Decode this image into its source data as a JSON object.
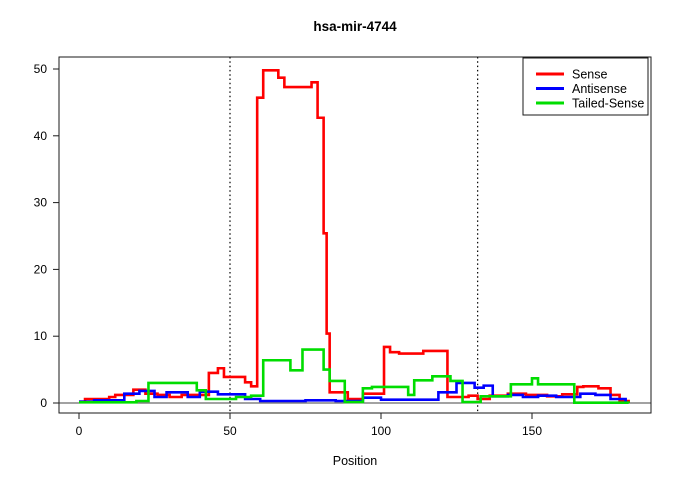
{
  "title": "hsa-mir-4744",
  "chart_data": {
    "type": "line",
    "step": true,
    "title": "hsa-mir-4744",
    "xlabel": "Position",
    "ylabel": "",
    "xlim": [
      -6.6,
      189.4
    ],
    "ylim": [
      -1.5,
      51.8
    ],
    "x_ticks": [
      0,
      50,
      100,
      150
    ],
    "y_ticks": [
      0,
      10,
      20,
      30,
      40,
      50
    ],
    "grid": false,
    "legend_position": "top-right",
    "zero_line": {
      "y": 0,
      "color": "#444444"
    },
    "vlines": {
      "x": [
        50,
        132
      ],
      "style": "dotted",
      "color": "#000000"
    },
    "series": [
      {
        "name": "Sense",
        "color": "#FF0000",
        "points": [
          [
            0,
            0.2
          ],
          [
            2,
            0.6
          ],
          [
            10,
            0.9
          ],
          [
            12,
            1.2
          ],
          [
            18,
            2.0
          ],
          [
            22,
            1.4
          ],
          [
            26,
            1.2
          ],
          [
            30,
            0.9
          ],
          [
            34,
            1.2
          ],
          [
            43,
            4.5
          ],
          [
            46,
            5.2
          ],
          [
            48,
            3.9
          ],
          [
            52,
            3.9
          ],
          [
            55,
            3.1
          ],
          [
            57,
            2.5
          ],
          [
            59,
            45.7
          ],
          [
            61,
            49.8
          ],
          [
            66,
            48.7
          ],
          [
            68,
            47.3
          ],
          [
            77,
            48.0
          ],
          [
            79,
            42.7
          ],
          [
            81,
            25.4
          ],
          [
            82,
            10.4
          ],
          [
            83,
            1.6
          ],
          [
            89,
            0.6
          ],
          [
            94,
            1.4
          ],
          [
            101,
            8.4
          ],
          [
            103,
            7.6
          ],
          [
            106,
            7.4
          ],
          [
            114,
            7.8
          ],
          [
            122,
            0.9
          ],
          [
            129,
            1.1
          ],
          [
            132,
            0.6
          ],
          [
            136,
            1.1
          ],
          [
            142,
            1.4
          ],
          [
            148,
            1.2
          ],
          [
            155,
            1.0
          ],
          [
            160,
            1.3
          ],
          [
            165,
            2.4
          ],
          [
            167,
            2.5
          ],
          [
            172,
            2.2
          ],
          [
            176,
            1.2
          ],
          [
            179,
            0.3
          ],
          [
            182,
            0
          ]
        ]
      },
      {
        "name": "Antisense",
        "color": "#0000FF",
        "points": [
          [
            0,
            0.2
          ],
          [
            5,
            0.4
          ],
          [
            15,
            1.4
          ],
          [
            20,
            1.8
          ],
          [
            25,
            0.9
          ],
          [
            29,
            1.6
          ],
          [
            36,
            0.9
          ],
          [
            40,
            1.7
          ],
          [
            46,
            1.3
          ],
          [
            55,
            0.6
          ],
          [
            60,
            0.3
          ],
          [
            75,
            0.4
          ],
          [
            85,
            0.3
          ],
          [
            94,
            0.8
          ],
          [
            100,
            0.5
          ],
          [
            119,
            1.6
          ],
          [
            125,
            3.0
          ],
          [
            131,
            2.3
          ],
          [
            134,
            2.6
          ],
          [
            137,
            1.0
          ],
          [
            142,
            1.2
          ],
          [
            147,
            0.9
          ],
          [
            152,
            1.1
          ],
          [
            158,
            0.9
          ],
          [
            166,
            1.4
          ],
          [
            171,
            1.2
          ],
          [
            176,
            0.6
          ],
          [
            181,
            0
          ]
        ]
      },
      {
        "name": "Tailed-Sense",
        "color": "#00DD00",
        "points": [
          [
            0,
            0.1
          ],
          [
            19,
            0.3
          ],
          [
            23,
            3.0
          ],
          [
            39,
            1.9
          ],
          [
            42,
            0.6
          ],
          [
            52,
            0.9
          ],
          [
            57,
            1.1
          ],
          [
            61,
            6.4
          ],
          [
            70,
            4.9
          ],
          [
            74,
            8.0
          ],
          [
            81,
            5.0
          ],
          [
            83,
            3.3
          ],
          [
            88,
            0.15
          ],
          [
            94,
            2.2
          ],
          [
            97,
            2.4
          ],
          [
            109,
            1.2
          ],
          [
            111,
            3.4
          ],
          [
            117,
            4.0
          ],
          [
            123,
            3.3
          ],
          [
            127,
            0.15
          ],
          [
            133,
            1.0
          ],
          [
            143,
            2.8
          ],
          [
            150,
            3.7
          ],
          [
            152,
            2.8
          ],
          [
            164,
            0.05
          ],
          [
            182,
            0
          ]
        ]
      }
    ]
  }
}
